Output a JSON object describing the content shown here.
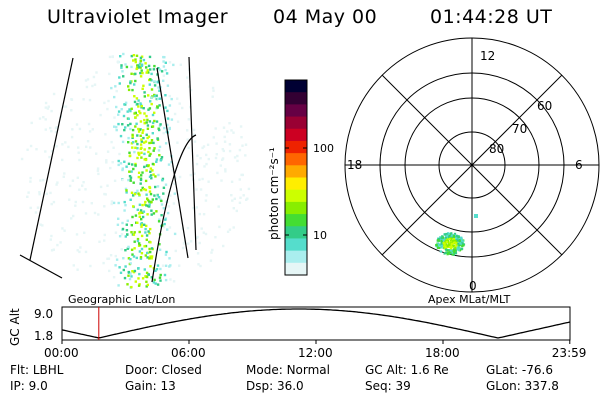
{
  "header": {
    "title": "Ultraviolet Imager",
    "date": "04 May 00",
    "time": "01:44:28 UT"
  },
  "left_panel": {
    "label": "Geographic Lat/Lon"
  },
  "right_panel": {
    "label": "Apex MLat/MLT",
    "mlt_labels": {
      "top": "12",
      "bottom": "0",
      "left": "18",
      "right": "6"
    },
    "lat_labels": [
      "60",
      "70",
      "80"
    ]
  },
  "colorbar": {
    "unit_label": "photon cm⁻²s⁻¹",
    "ticks": [
      "100",
      "10"
    ],
    "colors": [
      "#000033",
      "#330033",
      "#660044",
      "#990033",
      "#cc0022",
      "#ee2200",
      "#ff6600",
      "#ffaa00",
      "#ffee00",
      "#ccff00",
      "#88ee00",
      "#44dd33",
      "#33cc88",
      "#55ddcc",
      "#aaeeee",
      "#e6f6f6"
    ]
  },
  "gc_alt": {
    "ylabel": "GC Alt",
    "y_ticks": [
      "9.0",
      "1.8"
    ],
    "x_ticks": [
      "00:00",
      "06:00",
      "12:00",
      "18:00",
      "23:59"
    ],
    "marker_time": "01:44"
  },
  "info": {
    "row1": [
      {
        "label": "Flt:",
        "value": "LBHL"
      },
      {
        "label": "Door:",
        "value": "Closed"
      },
      {
        "label": "Mode:",
        "value": "Normal"
      },
      {
        "label": "GC Alt:",
        "value": "1.6 Re"
      },
      {
        "label": "GLat:",
        "value": "-76.6"
      }
    ],
    "row2": [
      {
        "label": "IP:",
        "value": "9.0"
      },
      {
        "label": "Gain:",
        "value": "13"
      },
      {
        "label": "Dsp:",
        "value": "36.0"
      },
      {
        "label": "Seq:",
        "value": "39"
      },
      {
        "label": "GLon:",
        "value": "337.8"
      }
    ]
  }
}
